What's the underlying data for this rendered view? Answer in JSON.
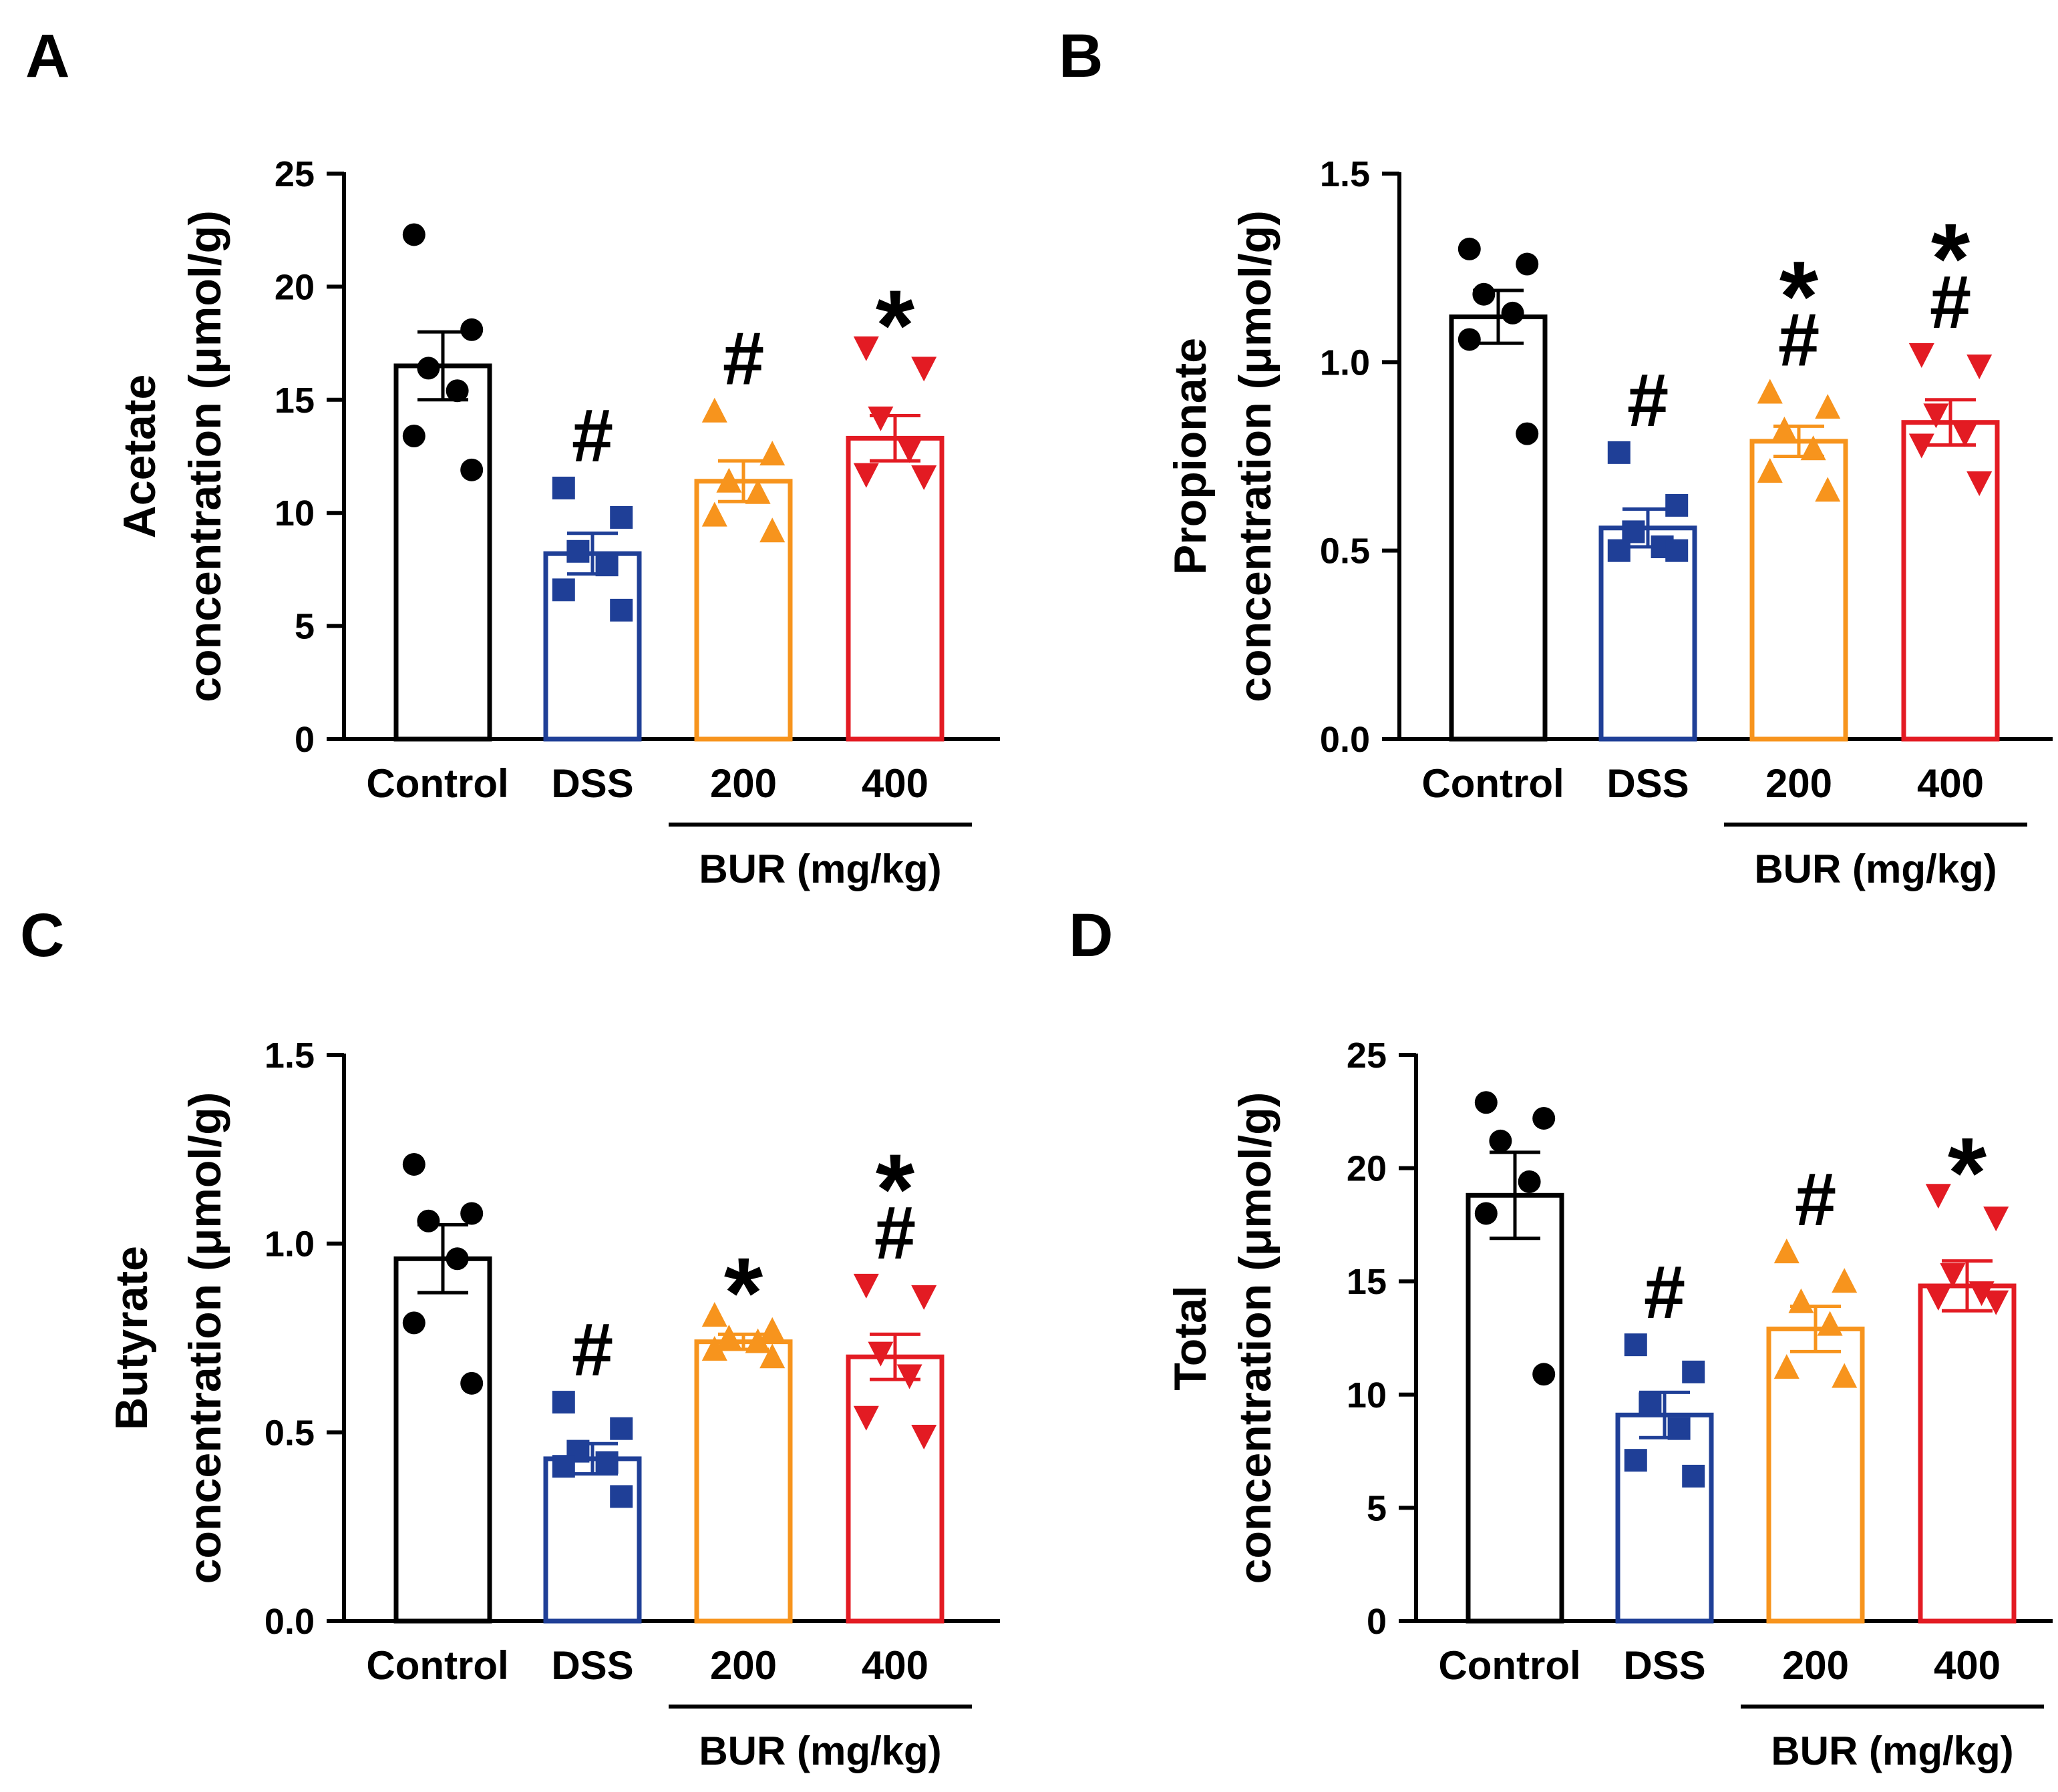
{
  "figure": {
    "group_labels": [
      "Control",
      "DSS",
      "200",
      "400"
    ],
    "group_note": "BUR (mg/kg)",
    "colors": {
      "Control": "#000000",
      "DSS": "#1f3f97",
      "200": "#f7941d",
      "400": "#e31b23"
    },
    "markers": {
      "Control": "circle",
      "DSS": "square",
      "200": "triangle-up",
      "400": "triangle-down"
    }
  },
  "chart_data": [
    {
      "panel": "A",
      "type": "bar",
      "ylabel_line1": "Acetate",
      "ylabel_line2": "concentration (μmol/g)",
      "ylim": [
        0,
        25
      ],
      "yticks": [
        0,
        5,
        10,
        15,
        20,
        25
      ],
      "ytick_labels": [
        "0",
        "5",
        "10",
        "15",
        "20",
        "25"
      ],
      "categories": [
        "Control",
        "DSS",
        "200",
        "400"
      ],
      "means": [
        16.5,
        8.2,
        11.4,
        13.3
      ],
      "sem": [
        1.5,
        0.9,
        0.9,
        1.0
      ],
      "points": [
        [
          22.3,
          18.1,
          16.4,
          15.4,
          13.4,
          11.9
        ],
        [
          11.1,
          9.8,
          8.3,
          7.7,
          6.6,
          5.7
        ],
        [
          14.5,
          12.6,
          11.4,
          10.9,
          9.9,
          9.2
        ],
        [
          17.3,
          16.4,
          14.2,
          12.8,
          11.7,
          11.6
        ]
      ],
      "annotations": [
        [],
        [
          "#"
        ],
        [
          "#"
        ],
        [
          "*"
        ]
      ]
    },
    {
      "panel": "B",
      "type": "bar",
      "ylabel_line1": "Propionate",
      "ylabel_line2": "concentration (μmol/g)",
      "ylim": [
        0,
        1.5
      ],
      "yticks": [
        0,
        0.5,
        1.0,
        1.5
      ],
      "ytick_labels": [
        "0.0",
        "0.5",
        "1.0",
        "1.5"
      ],
      "categories": [
        "Control",
        "DSS",
        "200",
        "400"
      ],
      "means": [
        1.12,
        0.56,
        0.79,
        0.84
      ],
      "sem": [
        0.07,
        0.05,
        0.04,
        0.06
      ],
      "points": [
        [
          1.3,
          1.26,
          1.18,
          1.13,
          1.06,
          0.81
        ],
        [
          0.76,
          0.62,
          0.55,
          0.51,
          0.5,
          0.5
        ],
        [
          0.92,
          0.88,
          0.82,
          0.77,
          0.71,
          0.66
        ],
        [
          1.02,
          0.99,
          0.86,
          0.81,
          0.78,
          0.68
        ]
      ],
      "annotations": [
        [],
        [
          "#"
        ],
        [
          "#",
          "*"
        ],
        [
          "#",
          "*"
        ]
      ]
    },
    {
      "panel": "C",
      "type": "bar",
      "ylabel_line1": "Butyrate",
      "ylabel_line2": "concentration (μmol/g)",
      "ylim": [
        0,
        1.5
      ],
      "yticks": [
        0,
        0.5,
        1.0,
        1.5
      ],
      "ytick_labels": [
        "0.0",
        "0.5",
        "1.0",
        "1.5"
      ],
      "categories": [
        "Control",
        "DSS",
        "200",
        "400"
      ],
      "means": [
        0.96,
        0.43,
        0.74,
        0.7
      ],
      "sem": [
        0.09,
        0.04,
        0.02,
        0.06
      ],
      "points": [
        [
          1.21,
          1.08,
          1.06,
          0.96,
          0.79,
          0.63
        ],
        [
          0.58,
          0.51,
          0.45,
          0.42,
          0.41,
          0.33
        ],
        [
          0.81,
          0.77,
          0.75,
          0.74,
          0.72,
          0.7
        ],
        [
          0.89,
          0.86,
          0.71,
          0.65,
          0.54,
          0.49
        ]
      ],
      "annotations": [
        [],
        [
          "#"
        ],
        [
          "*"
        ],
        [
          "#",
          "*"
        ]
      ]
    },
    {
      "panel": "D",
      "type": "bar",
      "ylabel_line1": "Total",
      "ylabel_line2": "concentration (μmol/g)",
      "ylim": [
        0,
        25
      ],
      "yticks": [
        0,
        5,
        10,
        15,
        20,
        25
      ],
      "ytick_labels": [
        "0",
        "5",
        "10",
        "15",
        "20",
        "25"
      ],
      "categories": [
        "Control",
        "DSS",
        "200",
        "400"
      ],
      "means": [
        18.8,
        9.1,
        12.9,
        14.8
      ],
      "sem": [
        1.9,
        1.0,
        1.0,
        1.1
      ],
      "points": [
        [
          22.9,
          22.2,
          21.2,
          19.4,
          18.0,
          10.9
        ],
        [
          12.2,
          11.0,
          9.6,
          8.5,
          7.1,
          6.4
        ],
        [
          16.3,
          15.0,
          14.1,
          13.1,
          11.2,
          10.8
        ],
        [
          18.8,
          17.8,
          15.3,
          14.5,
          14.3,
          14.1
        ]
      ],
      "annotations": [
        [],
        [
          "#"
        ],
        [
          "#"
        ],
        [
          "*"
        ]
      ]
    }
  ]
}
